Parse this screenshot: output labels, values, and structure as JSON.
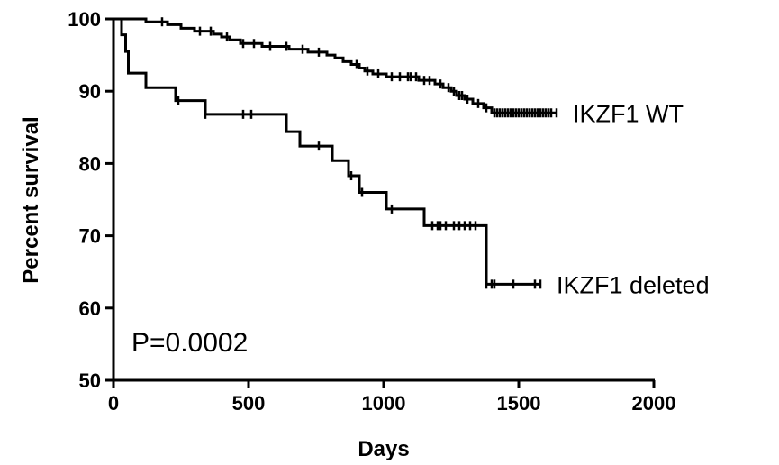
{
  "chart_data": {
    "type": "line",
    "xlabel": "Days",
    "ylabel": "Percent survival",
    "xlim": [
      0,
      2000
    ],
    "ylim": [
      50,
      100
    ],
    "x_ticks": [
      0,
      500,
      1000,
      1500,
      2000
    ],
    "y_ticks": [
      50,
      60,
      70,
      80,
      90,
      100
    ],
    "grid": false,
    "annotation": "P=0.0002",
    "series": [
      {
        "name": "IKZF1 WT",
        "color": "#000000",
        "steps": [
          [
            0,
            100
          ],
          [
            120,
            99.6
          ],
          [
            200,
            99.2
          ],
          [
            250,
            98.7
          ],
          [
            300,
            98.3
          ],
          [
            370,
            97.9
          ],
          [
            400,
            97.5
          ],
          [
            430,
            97.1
          ],
          [
            470,
            96.6
          ],
          [
            550,
            96.2
          ],
          [
            650,
            95.8
          ],
          [
            720,
            95.4
          ],
          [
            790,
            95.0
          ],
          [
            820,
            94.6
          ],
          [
            850,
            94.1
          ],
          [
            880,
            93.7
          ],
          [
            910,
            93.2
          ],
          [
            930,
            92.8
          ],
          [
            960,
            92.4
          ],
          [
            1010,
            92.0
          ],
          [
            1130,
            91.5
          ],
          [
            1190,
            91.0
          ],
          [
            1220,
            90.5
          ],
          [
            1250,
            90.0
          ],
          [
            1270,
            89.4
          ],
          [
            1300,
            88.9
          ],
          [
            1330,
            88.3
          ],
          [
            1370,
            87.7
          ],
          [
            1400,
            87.0
          ],
          [
            1640,
            87.0
          ]
        ],
        "censor": [
          180,
          320,
          360,
          420,
          480,
          520,
          580,
          640,
          700,
          760,
          900,
          940,
          980,
          1030,
          1060,
          1090,
          1100,
          1120,
          1150,
          1170,
          1210,
          1240,
          1260,
          1280,
          1290,
          1310,
          1350,
          1380,
          1410,
          1420,
          1430,
          1440,
          1450,
          1460,
          1470,
          1480,
          1490,
          1500,
          1510,
          1520,
          1530,
          1540,
          1550,
          1560,
          1570,
          1580,
          1590,
          1600,
          1610,
          1620,
          1640
        ],
        "end_label": "IKZF1 WT"
      },
      {
        "name": "IKZF1 deleted",
        "color": "#000000",
        "steps": [
          [
            0,
            100
          ],
          [
            30,
            97.8
          ],
          [
            45,
            95.5
          ],
          [
            55,
            92.5
          ],
          [
            120,
            90.5
          ],
          [
            230,
            88.7
          ],
          [
            340,
            86.8
          ],
          [
            640,
            84.4
          ],
          [
            690,
            82.4
          ],
          [
            810,
            80.4
          ],
          [
            870,
            78.3
          ],
          [
            910,
            76.0
          ],
          [
            1010,
            73.7
          ],
          [
            1150,
            71.4
          ],
          [
            1380,
            63.3
          ],
          [
            1580,
            63.3
          ]
        ],
        "censor": [
          240,
          340,
          480,
          510,
          760,
          880,
          920,
          1030,
          1180,
          1200,
          1210,
          1230,
          1260,
          1280,
          1300,
          1320,
          1340,
          1380,
          1400,
          1410,
          1480,
          1560,
          1580
        ],
        "end_label": "IKZF1 deleted"
      }
    ]
  }
}
